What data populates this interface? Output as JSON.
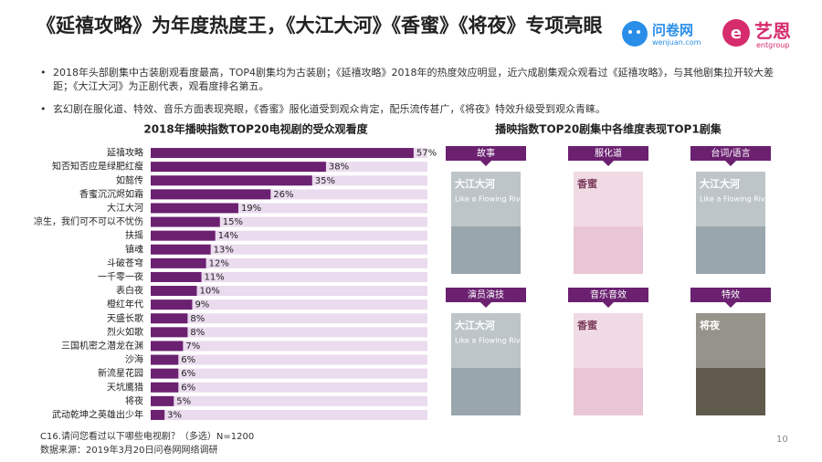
{
  "title": "《延禧攻略》为年度热度王，《大江大河》《香蜜》《将夜》专项亮眼",
  "logos": {
    "wenjuan": "问卷网",
    "wenjuan_url": "wenjuan.com",
    "ent": "艺恩",
    "ent_en": "entgroup"
  },
  "bullets": [
    "2018年头部剧集中古装剧观看度最高，TOP4剧集均为古装剧；《延禧攻略》2018年的热度效应明显，近六成剧集观众观看过《延禧攻略》，与其他剧集拉开较大差距；《大江大河》为正剧代表，观看度排名第五。",
    "玄幻剧在服化道、特效、音乐方面表现亮眼，《香蜜》服化道受到观众肯定，配乐流传甚广，《将夜》特效升级受到观众青睐。"
  ],
  "chart_data": {
    "type": "bar",
    "orientation": "horizontal",
    "title": "2018年播映指数TOP20电视剧的受众观看度",
    "categories": [
      "延禧攻略",
      "知否知否应是绿肥红瘦",
      "如懿传",
      "香蜜沉沉烬如霜",
      "大江大河",
      "凉生，我们可不可以不忧伤",
      "扶摇",
      "镇魂",
      "斗破苍穹",
      "一千零一夜",
      "表白夜",
      "橙红年代",
      "天盛长歌",
      "烈火如歌",
      "三国机密之潜龙在渊",
      "沙海",
      "新流星花园",
      "天坑鹰猎",
      "将夜",
      "武动乾坤之英雄出少年"
    ],
    "values": [
      57,
      38,
      35,
      26,
      19,
      15,
      14,
      13,
      12,
      11,
      10,
      9,
      8,
      8,
      7,
      6,
      6,
      6,
      5,
      3
    ],
    "value_labels": [
      "57%",
      "38%",
      "35%",
      "26%",
      "19%",
      "15%",
      "14%",
      "13%",
      "12%",
      "11%",
      "10%",
      "9%",
      "8%",
      "8%",
      "7%",
      "6%",
      "6%",
      "6%",
      "5%",
      "3%"
    ],
    "color": "#6b2170",
    "track_color": "#eadbee",
    "xlim": [
      0,
      60
    ]
  },
  "panel": {
    "title": "播映指数TOP20剧集中各维度表现TOP1剧集",
    "items": [
      {
        "label": "故事",
        "poster": "大江大河",
        "poster_en": "Like a Flowing River"
      },
      {
        "label": "服化道",
        "poster": "香蜜"
      },
      {
        "label": "台词/语言",
        "poster": "大江大河",
        "poster_en": "Like a Flowing River"
      },
      {
        "label": "演员演技",
        "poster": "大江大河",
        "poster_en": "Like a Flowing River"
      },
      {
        "label": "音乐音效",
        "poster": "香蜜"
      },
      {
        "label": "特效",
        "poster": "将夜"
      }
    ]
  },
  "footnotes": [
    "C16.请问您看过以下哪些电视剧？（多选）N=1200",
    "数据来源：2019年3月20日问卷网网络调研"
  ],
  "page_number": "10"
}
